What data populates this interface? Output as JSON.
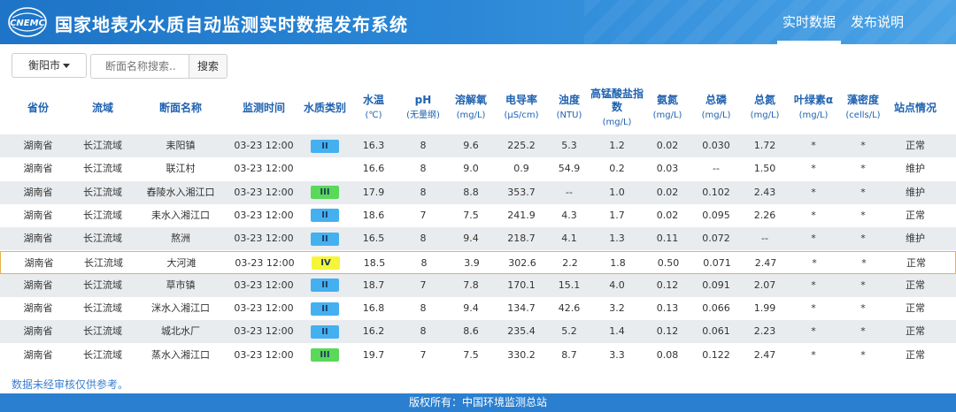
{
  "header": {
    "logo_text": "CNEMC",
    "title": "国家地表水水质自动监测实时数据发布系统",
    "nav": [
      {
        "label": "实时数据",
        "active": true
      },
      {
        "label": "发布说明",
        "active": false
      }
    ]
  },
  "filter": {
    "city": "衡阳市",
    "search_placeholder": "断面名称搜索..",
    "search_button": "搜索"
  },
  "table": {
    "columns": [
      {
        "label": "省份",
        "unit": ""
      },
      {
        "label": "流域",
        "unit": ""
      },
      {
        "label": "断面名称",
        "unit": ""
      },
      {
        "label": "监测时间",
        "unit": ""
      },
      {
        "label": "水质类别",
        "unit": ""
      },
      {
        "label": "水温",
        "unit": "(℃)"
      },
      {
        "label": "pH",
        "unit": "(无量纲)"
      },
      {
        "label": "溶解氧",
        "unit": "(mg/L)"
      },
      {
        "label": "电导率",
        "unit": "(μS/cm)"
      },
      {
        "label": "浊度",
        "unit": "(NTU)"
      },
      {
        "label": "高锰酸盐指数",
        "unit": "(mg/L)"
      },
      {
        "label": "氨氮",
        "unit": "(mg/L)"
      },
      {
        "label": "总磷",
        "unit": "(mg/L)"
      },
      {
        "label": "总氮",
        "unit": "(mg/L)"
      },
      {
        "label": "叶绿素α",
        "unit": "(mg/L)"
      },
      {
        "label": "藻密度",
        "unit": "(cells/L)"
      },
      {
        "label": "站点情况",
        "unit": ""
      }
    ],
    "rows": [
      [
        "湖南省",
        "长江流域",
        "耒阳镇",
        "03-23 12:00",
        "II",
        "16.3",
        "8",
        "9.6",
        "225.2",
        "5.3",
        "1.2",
        "0.02",
        "0.030",
        "1.72",
        "*",
        "*",
        "正常"
      ],
      [
        "湖南省",
        "长江流域",
        "联江村",
        "03-23 12:00",
        "",
        "16.6",
        "8",
        "9.0",
        "0.9",
        "54.9",
        "0.2",
        "0.03",
        "--",
        "1.50",
        "*",
        "*",
        "维护"
      ],
      [
        "湖南省",
        "长江流域",
        "舂陵水入湘江口",
        "03-23 12:00",
        "III",
        "17.9",
        "8",
        "8.8",
        "353.7",
        "--",
        "1.0",
        "0.02",
        "0.102",
        "2.43",
        "*",
        "*",
        "维护"
      ],
      [
        "湖南省",
        "长江流域",
        "耒水入湘江口",
        "03-23 12:00",
        "II",
        "18.6",
        "7",
        "7.5",
        "241.9",
        "4.3",
        "1.7",
        "0.02",
        "0.095",
        "2.26",
        "*",
        "*",
        "正常"
      ],
      [
        "湖南省",
        "长江流域",
        "熬洲",
        "03-23 12:00",
        "II",
        "16.5",
        "8",
        "9.4",
        "218.7",
        "4.1",
        "1.3",
        "0.11",
        "0.072",
        "--",
        "*",
        "*",
        "维护"
      ],
      [
        "湖南省",
        "长江流域",
        "大河滩",
        "03-23 12:00",
        "IV",
        "18.5",
        "8",
        "3.9",
        "302.6",
        "2.2",
        "1.8",
        "0.50",
        "0.071",
        "2.47",
        "*",
        "*",
        "正常"
      ],
      [
        "湖南省",
        "长江流域",
        "草市镇",
        "03-23 12:00",
        "II",
        "18.7",
        "7",
        "7.8",
        "170.1",
        "15.1",
        "4.0",
        "0.12",
        "0.091",
        "2.07",
        "*",
        "*",
        "正常"
      ],
      [
        "湖南省",
        "长江流域",
        "洣水入湘江口",
        "03-23 12:00",
        "II",
        "16.8",
        "8",
        "9.4",
        "134.7",
        "42.6",
        "3.2",
        "0.13",
        "0.066",
        "1.99",
        "*",
        "*",
        "正常"
      ],
      [
        "湖南省",
        "长江流域",
        "城北水厂",
        "03-23 12:00",
        "II",
        "16.2",
        "8",
        "8.6",
        "235.4",
        "5.2",
        "1.4",
        "0.12",
        "0.061",
        "2.23",
        "*",
        "*",
        "正常"
      ],
      [
        "湖南省",
        "长江流域",
        "蒸水入湘江口",
        "03-23 12:00",
        "III",
        "19.7",
        "7",
        "7.5",
        "330.2",
        "8.7",
        "3.3",
        "0.08",
        "0.122",
        "2.47",
        "*",
        "*",
        "正常"
      ]
    ],
    "highlighted_row": 5,
    "grade_colors": {
      "II": "#45b0f0",
      "III": "#5ad85a",
      "IV": "#f5f53a"
    }
  },
  "footnote": "数据未经审核仅供参考。",
  "footer": "版权所有：中国环境监测总站"
}
